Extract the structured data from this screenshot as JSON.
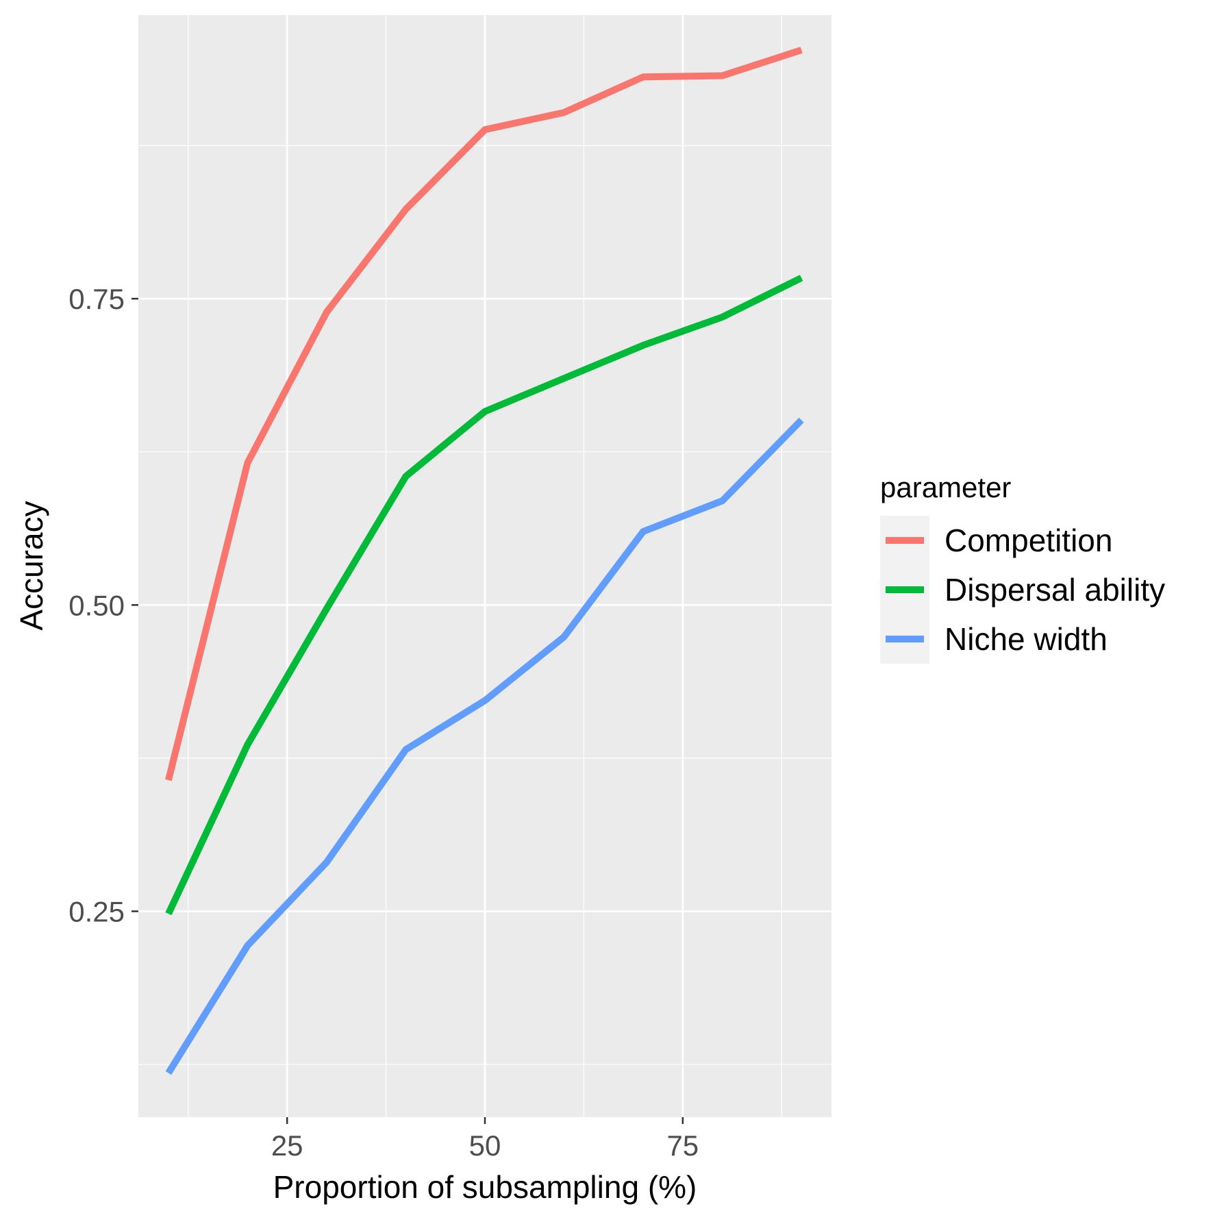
{
  "chart_data": {
    "type": "line",
    "xlabel": "Proportion of subsampling (%)",
    "ylabel": "Accuracy",
    "x": [
      10,
      20,
      30,
      40,
      50,
      60,
      70,
      80,
      90
    ],
    "xlim": [
      6.2,
      93.8
    ],
    "ylim": [
      0.082,
      0.9815
    ],
    "x_ticks": [
      25,
      50,
      75
    ],
    "x_tick_labels": [
      "25",
      "50",
      "75"
    ],
    "y_ticks": [
      0.25,
      0.5,
      0.75
    ],
    "y_tick_labels": [
      "0.25",
      "0.50",
      "0.75"
    ],
    "grid": true,
    "legend": {
      "title": "parameter",
      "placement": "right"
    },
    "series": [
      {
        "name": "Competition",
        "color": "#F8766D",
        "values": [
          0.357,
          0.616,
          0.739,
          0.823,
          0.888,
          0.902,
          0.931,
          0.932,
          0.953
        ]
      },
      {
        "name": "Dispersal ability",
        "color": "#00BA38",
        "values": [
          0.248,
          0.386,
          0.497,
          0.605,
          0.658,
          0.685,
          0.712,
          0.735,
          0.767
        ]
      },
      {
        "name": "Niche width",
        "color": "#619CFF",
        "values": [
          0.118,
          0.222,
          0.29,
          0.382,
          0.422,
          0.474,
          0.56,
          0.585,
          0.651
        ]
      }
    ]
  },
  "colors": {
    "panel_background": "#EBEBEB",
    "grid_line": "#FFFFFF",
    "legend_key_background": "#F2F2F2"
  }
}
